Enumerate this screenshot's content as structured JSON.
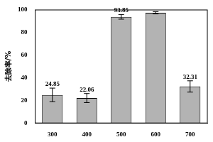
{
  "chart_data": {
    "type": "bar",
    "y_label": "去除率/%",
    "categories": [
      "300",
      "400",
      "500",
      "600",
      "700"
    ],
    "values": [
      24.85,
      22.06,
      93.85,
      97.5,
      32.31
    ],
    "value_labels": [
      "24.85",
      "22.06",
      "93.85",
      null,
      "32.31"
    ],
    "errors": [
      6,
      4,
      2,
      1,
      5
    ],
    "color": "#b3b3b3",
    "ylim": [
      0,
      100
    ],
    "yticks": [
      0,
      20,
      40,
      60,
      80,
      100
    ],
    "grid": false,
    "data_labels": true
  }
}
